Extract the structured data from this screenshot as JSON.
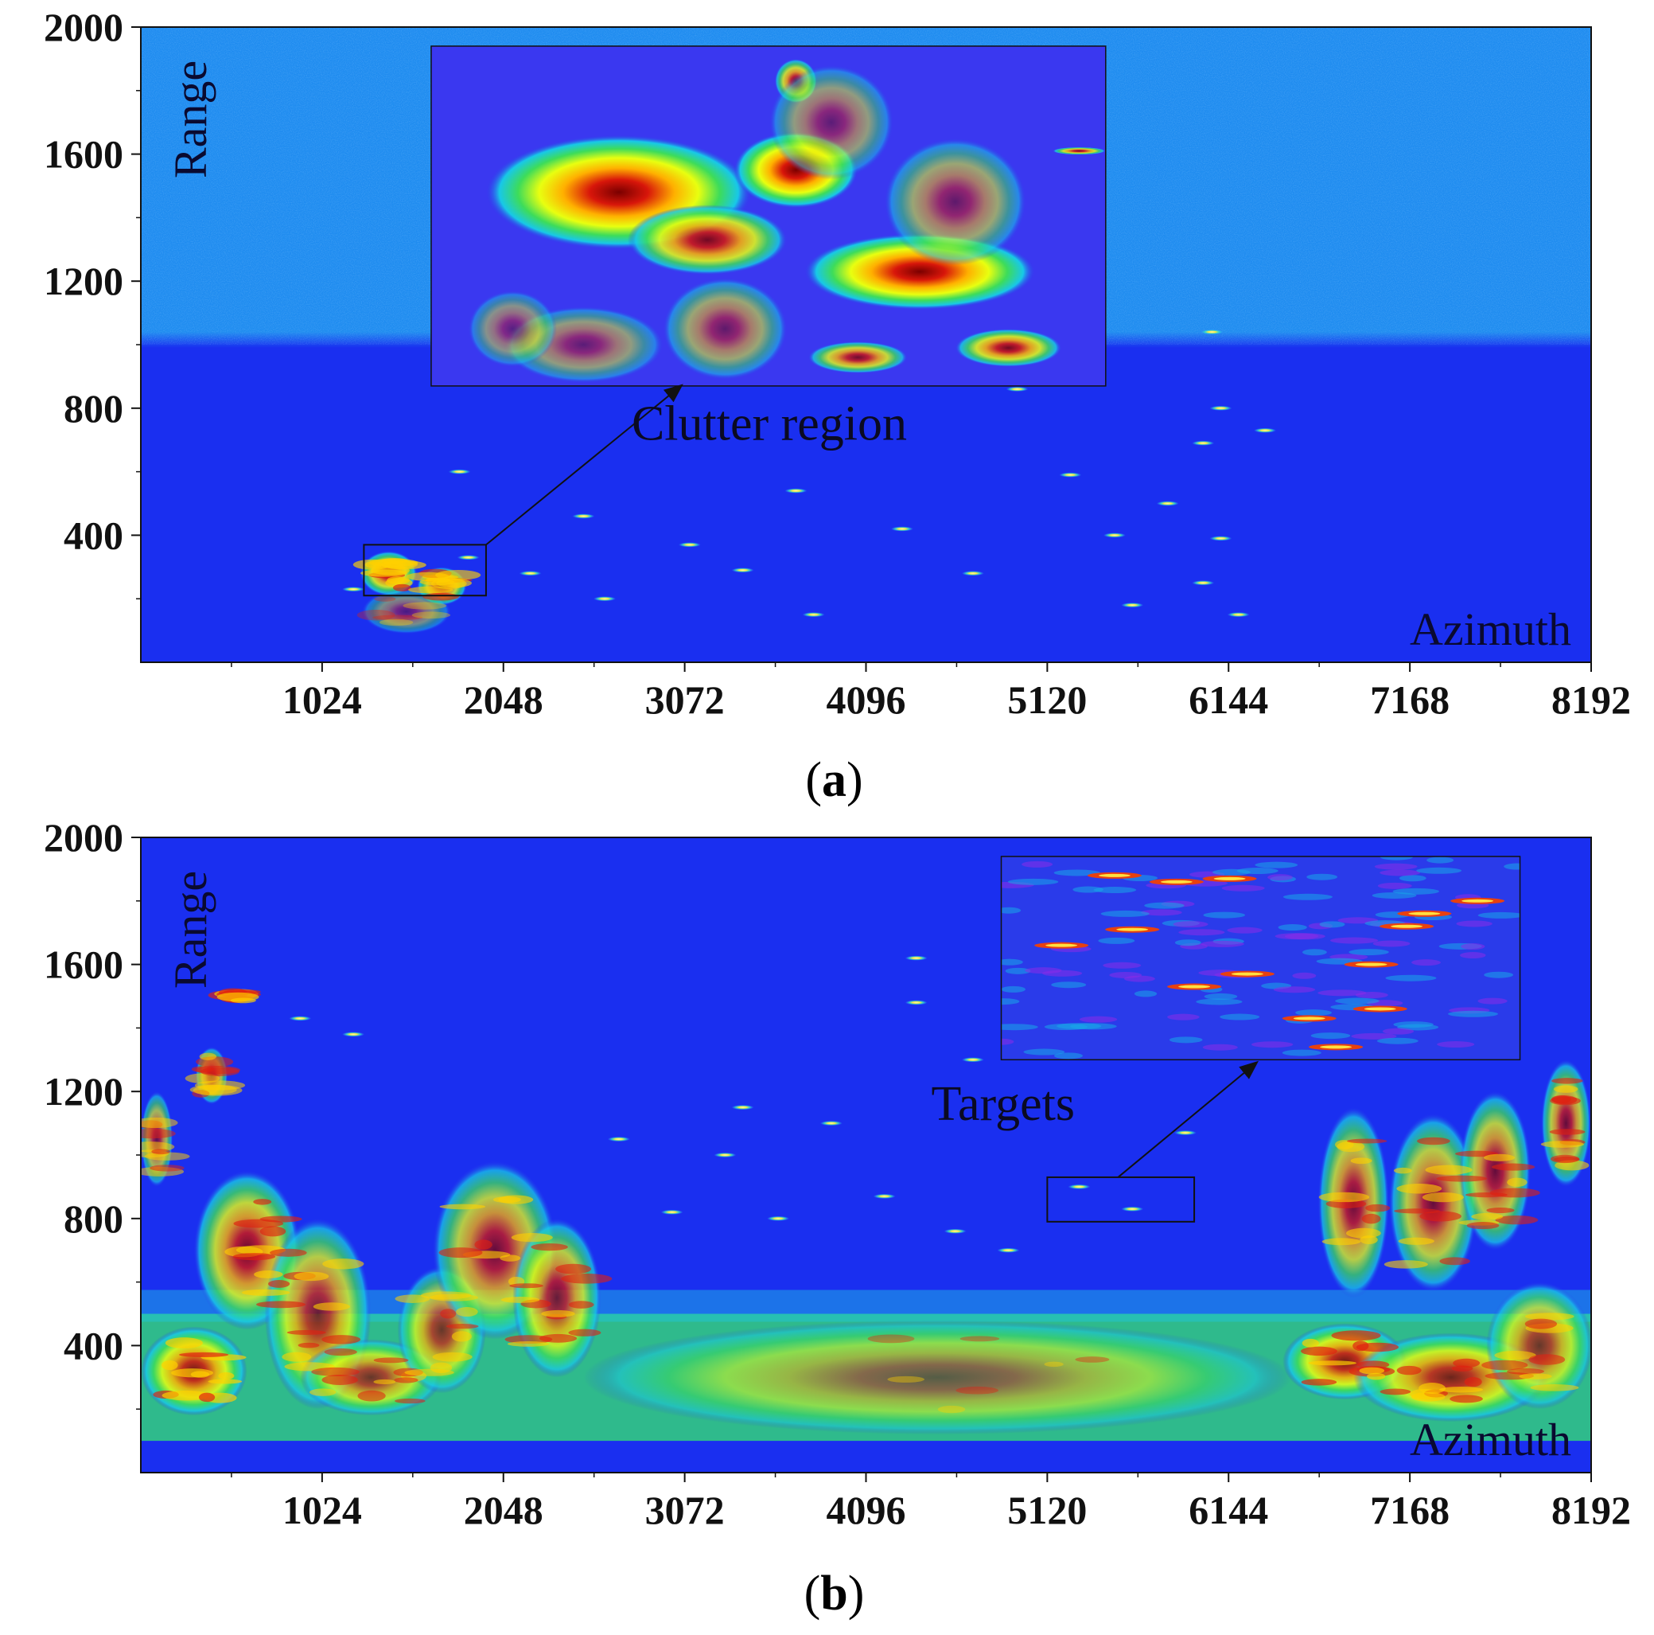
{
  "chart_data": [
    {
      "type": "heatmap",
      "panel_label": "(a)",
      "xlabel": "Azimuth",
      "ylabel": "Range",
      "xlim": [
        0,
        8192
      ],
      "ylim": [
        0,
        2000
      ],
      "xticks": [
        1024,
        2048,
        3072,
        4096,
        5120,
        6144,
        7168,
        8192
      ],
      "yticks": [
        400,
        800,
        1200,
        1600,
        2000
      ],
      "grid": false,
      "colormap": "jet",
      "background": {
        "low_range_color": "#1a2ff0",
        "high_range_color": "#1f8cf0",
        "transition_range": 1000
      },
      "clutter_blobs": [
        {
          "x": 1400,
          "y": 280,
          "rx": 160,
          "ry": 70,
          "intensity": 0.85
        },
        {
          "x": 1700,
          "y": 240,
          "rx": 140,
          "ry": 60,
          "intensity": 0.8
        },
        {
          "x": 1500,
          "y": 160,
          "rx": 250,
          "ry": 70,
          "intensity": 0.45
        }
      ],
      "target_streaks": [
        {
          "x": 1200,
          "y": 230
        },
        {
          "x": 1850,
          "y": 330
        },
        {
          "x": 2200,
          "y": 280
        },
        {
          "x": 2620,
          "y": 200
        },
        {
          "x": 3100,
          "y": 370
        },
        {
          "x": 3400,
          "y": 290
        },
        {
          "x": 3700,
          "y": 540
        },
        {
          "x": 3800,
          "y": 150
        },
        {
          "x": 4300,
          "y": 420
        },
        {
          "x": 4700,
          "y": 280
        },
        {
          "x": 5250,
          "y": 590
        },
        {
          "x": 5600,
          "y": 180
        },
        {
          "x": 5800,
          "y": 500
        },
        {
          "x": 6000,
          "y": 690
        },
        {
          "x": 6200,
          "y": 150
        },
        {
          "x": 6000,
          "y": 250
        },
        {
          "x": 6100,
          "y": 800
        },
        {
          "x": 6350,
          "y": 730
        },
        {
          "x": 5500,
          "y": 400
        },
        {
          "x": 6050,
          "y": 1040
        },
        {
          "x": 4950,
          "y": 860
        },
        {
          "x": 2500,
          "y": 460
        },
        {
          "x": 1800,
          "y": 600
        },
        {
          "x": 6100,
          "y": 390
        }
      ],
      "box": {
        "x0": 1260,
        "x1": 1950,
        "y0": 210,
        "y1": 370
      },
      "inset": {
        "x0": 1640,
        "x1": 5450,
        "y0": 870,
        "y1": 1940,
        "background": "#3a38f0",
        "blobs": [
          {
            "x": 2700,
            "y": 1480,
            "rx": 750,
            "ry": 180,
            "intensity": 1.0
          },
          {
            "x": 3700,
            "y": 1550,
            "rx": 350,
            "ry": 120,
            "intensity": 1.0
          },
          {
            "x": 4400,
            "y": 1230,
            "rx": 650,
            "ry": 120,
            "intensity": 1.0
          },
          {
            "x": 3200,
            "y": 1330,
            "rx": 450,
            "ry": 110,
            "intensity": 0.85
          },
          {
            "x": 4900,
            "y": 990,
            "rx": 300,
            "ry": 60,
            "intensity": 0.85
          },
          {
            "x": 4050,
            "y": 960,
            "rx": 280,
            "ry": 50,
            "intensity": 0.8
          },
          {
            "x": 3700,
            "y": 1830,
            "rx": 120,
            "ry": 70,
            "intensity": 0.8
          },
          {
            "x": 3300,
            "y": 1050,
            "rx": 350,
            "ry": 160,
            "intensity": 0.55
          },
          {
            "x": 2500,
            "y": 1000,
            "rx": 450,
            "ry": 120,
            "intensity": 0.5
          },
          {
            "x": 3900,
            "y": 1700,
            "rx": 350,
            "ry": 180,
            "intensity": 0.5
          },
          {
            "x": 4600,
            "y": 1450,
            "rx": 400,
            "ry": 200,
            "intensity": 0.55
          },
          {
            "x": 2100,
            "y": 1050,
            "rx": 250,
            "ry": 120,
            "intensity": 0.45
          },
          {
            "x": 5300,
            "y": 1610,
            "rx": 150,
            "ry": 12,
            "intensity": 0.85
          }
        ]
      },
      "annotation": {
        "text": "Clutter region",
        "x": 3550,
        "y": 700
      },
      "arrow": {
        "from": {
          "x": 1950,
          "y": 370
        },
        "to": {
          "x": 3050,
          "y": 870
        }
      }
    },
    {
      "type": "heatmap",
      "panel_label": "(b)",
      "xlabel": "Azimuth",
      "ylabel": "Range",
      "xlim": [
        0,
        8192
      ],
      "ylim": [
        0,
        2000
      ],
      "xticks": [
        1024,
        2048,
        3072,
        4096,
        5120,
        6144,
        7168,
        8192
      ],
      "yticks": [
        400,
        800,
        1200,
        1600,
        2000
      ],
      "grid": false,
      "colormap": "jet",
      "background": {
        "low_range_color": "#1a2ff0",
        "high_range_color": "#1a2ff0",
        "transition_range": 2000
      },
      "floor_band": {
        "y0": 100,
        "y1": 500,
        "color": "#34d27a"
      },
      "clutter_blobs": [
        {
          "x": 300,
          "y": 320,
          "rx": 300,
          "ry": 140,
          "intensity": 0.85
        },
        {
          "x": 600,
          "y": 700,
          "rx": 300,
          "ry": 250,
          "intensity": 0.8
        },
        {
          "x": 1000,
          "y": 500,
          "rx": 300,
          "ry": 300,
          "intensity": 0.75
        },
        {
          "x": 1300,
          "y": 300,
          "rx": 400,
          "ry": 120,
          "intensity": 0.7
        },
        {
          "x": 1700,
          "y": 450,
          "rx": 250,
          "ry": 200,
          "intensity": 0.7
        },
        {
          "x": 2000,
          "y": 700,
          "rx": 350,
          "ry": 280,
          "intensity": 0.75
        },
        {
          "x": 2350,
          "y": 550,
          "rx": 250,
          "ry": 250,
          "intensity": 0.75
        },
        {
          "x": 400,
          "y": 1250,
          "rx": 90,
          "ry": 90,
          "intensity": 0.7
        },
        {
          "x": 90,
          "y": 1050,
          "rx": 90,
          "ry": 150,
          "intensity": 0.65
        },
        {
          "x": 550,
          "y": 1500,
          "rx": 60,
          "ry": 20,
          "intensity": 0.85
        },
        {
          "x": 6800,
          "y": 350,
          "rx": 350,
          "ry": 120,
          "intensity": 0.85
        },
        {
          "x": 7400,
          "y": 300,
          "rx": 550,
          "ry": 140,
          "intensity": 0.8
        },
        {
          "x": 7900,
          "y": 400,
          "rx": 300,
          "ry": 200,
          "intensity": 0.7
        },
        {
          "x": 6850,
          "y": 850,
          "rx": 200,
          "ry": 300,
          "intensity": 0.75
        },
        {
          "x": 7300,
          "y": 850,
          "rx": 250,
          "ry": 280,
          "intensity": 0.75
        },
        {
          "x": 7650,
          "y": 950,
          "rx": 200,
          "ry": 250,
          "intensity": 0.75
        },
        {
          "x": 8050,
          "y": 1100,
          "rx": 140,
          "ry": 200,
          "intensity": 0.75
        },
        {
          "x": 4500,
          "y": 300,
          "rx": 2000,
          "ry": 180,
          "intensity": 0.5
        }
      ],
      "target_streaks": [
        {
          "x": 4380,
          "y": 1480
        },
        {
          "x": 4380,
          "y": 1620
        },
        {
          "x": 3000,
          "y": 820
        },
        {
          "x": 3600,
          "y": 800
        },
        {
          "x": 4200,
          "y": 870
        },
        {
          "x": 4600,
          "y": 760
        },
        {
          "x": 5300,
          "y": 900
        },
        {
          "x": 5600,
          "y": 830
        },
        {
          "x": 2700,
          "y": 1050
        },
        {
          "x": 3300,
          "y": 1000
        },
        {
          "x": 3900,
          "y": 1100
        },
        {
          "x": 1200,
          "y": 1380
        },
        {
          "x": 900,
          "y": 1430
        },
        {
          "x": 5900,
          "y": 1070
        },
        {
          "x": 6000,
          "y": 1350
        },
        {
          "x": 4900,
          "y": 700
        },
        {
          "x": 3400,
          "y": 1150
        },
        {
          "x": 4700,
          "y": 1300
        }
      ],
      "box": {
        "x0": 5120,
        "x1": 5950,
        "y0": 790,
        "y1": 930
      },
      "inset": {
        "x0": 4860,
        "x1": 7790,
        "y0": 1300,
        "y1": 1940,
        "background": "#2a3bea",
        "streaks": [
          {
            "x": 5500,
            "y": 1880
          },
          {
            "x": 5850,
            "y": 1860
          },
          {
            "x": 6150,
            "y": 1870
          },
          {
            "x": 5600,
            "y": 1710
          },
          {
            "x": 5200,
            "y": 1660
          },
          {
            "x": 5950,
            "y": 1530
          },
          {
            "x": 6250,
            "y": 1570
          },
          {
            "x": 6600,
            "y": 1430
          },
          {
            "x": 7000,
            "y": 1460
          },
          {
            "x": 6950,
            "y": 1600
          },
          {
            "x": 7250,
            "y": 1760
          },
          {
            "x": 7550,
            "y": 1800
          },
          {
            "x": 6750,
            "y": 1340
          },
          {
            "x": 7150,
            "y": 1720
          }
        ]
      },
      "annotation": {
        "text": "Targets",
        "x": 4870,
        "y": 1110
      },
      "arrow": {
        "from": {
          "x": 5520,
          "y": 930
        },
        "to": {
          "x": 6300,
          "y": 1290
        }
      }
    }
  ]
}
